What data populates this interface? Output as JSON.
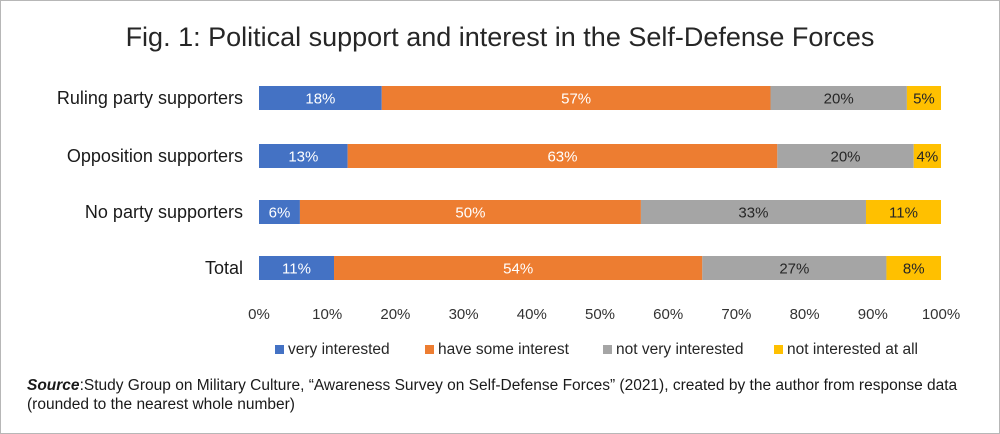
{
  "chart_data": {
    "type": "bar",
    "orientation": "horizontal",
    "stacked": true,
    "title": "Fig. 1: Political support and interest in the Self-Defense Forces",
    "categories": [
      "Ruling party supporters",
      "Opposition supporters",
      "No party supporters",
      "Total"
    ],
    "series": [
      {
        "name": "very interested",
        "color": "#4472c4",
        "values": [
          18,
          13,
          6,
          11
        ],
        "labels": [
          "18%",
          "13%",
          "6%",
          "11%"
        ],
        "label_color": "#ffffff"
      },
      {
        "name": "have some interest",
        "color": "#ed7d31",
        "values": [
          57,
          63,
          50,
          54
        ],
        "labels": [
          "57%",
          "63%",
          "50%",
          "54%"
        ],
        "label_color": "#ffffff"
      },
      {
        "name": "not very interested",
        "color": "#a5a5a5",
        "values": [
          20,
          20,
          33,
          27
        ],
        "labels": [
          "20%",
          "20%",
          "33%",
          "27%"
        ],
        "label_color": "#262626"
      },
      {
        "name": "not interested at all",
        "color": "#ffc000",
        "values": [
          5,
          4,
          11,
          8
        ],
        "labels": [
          "5%",
          "4%",
          "11%",
          "8%"
        ],
        "label_color": "#262626"
      }
    ],
    "xlim": [
      0,
      100
    ],
    "x_ticks": [
      "0%",
      "10%",
      "20%",
      "30%",
      "40%",
      "50%",
      "60%",
      "70%",
      "80%",
      "90%",
      "100%"
    ],
    "grid": false,
    "legend_position": "bottom"
  },
  "source": {
    "label": "Source",
    "text": ":Study Group on Military Culture, “Awareness Survey on Self-Defense Forces” (2021), created by the author from response data (rounded to the nearest whole number)"
  }
}
